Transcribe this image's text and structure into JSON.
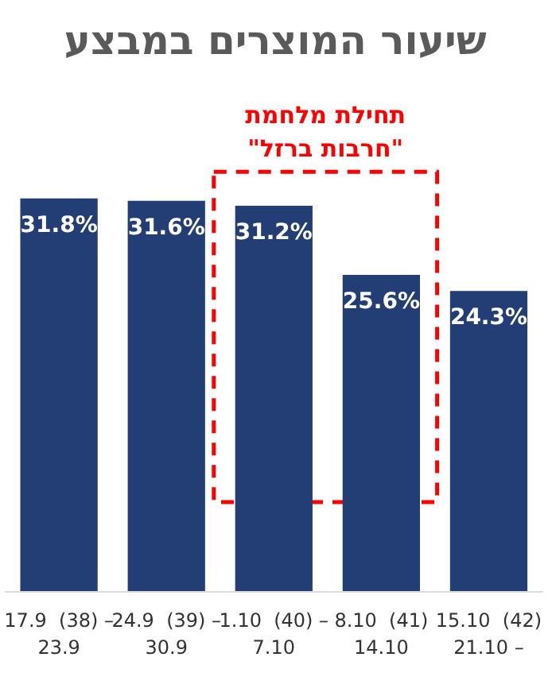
{
  "chart_data": {
    "type": "bar",
    "title": "שיעור המוצרים במבצע",
    "categories": [
      "17.9  (38) –\n23.9",
      "24.9  (39) –\n30.9",
      "1.10  (40) –\n7.10",
      "8.10  (41)\n14.10",
      "15.10  (42)\n21.10 –"
    ],
    "values": [
      31.8,
      31.6,
      31.2,
      25.6,
      24.3
    ],
    "color": "#233e74",
    "data_labels": true,
    "value_labels": [
      "31.8%",
      "31.6%",
      "31.2%",
      "25.6%",
      "24.3%"
    ],
    "annotations": [
      "תחילת מלחמת\n\"חרבות ברזל\""
    ]
  }
}
